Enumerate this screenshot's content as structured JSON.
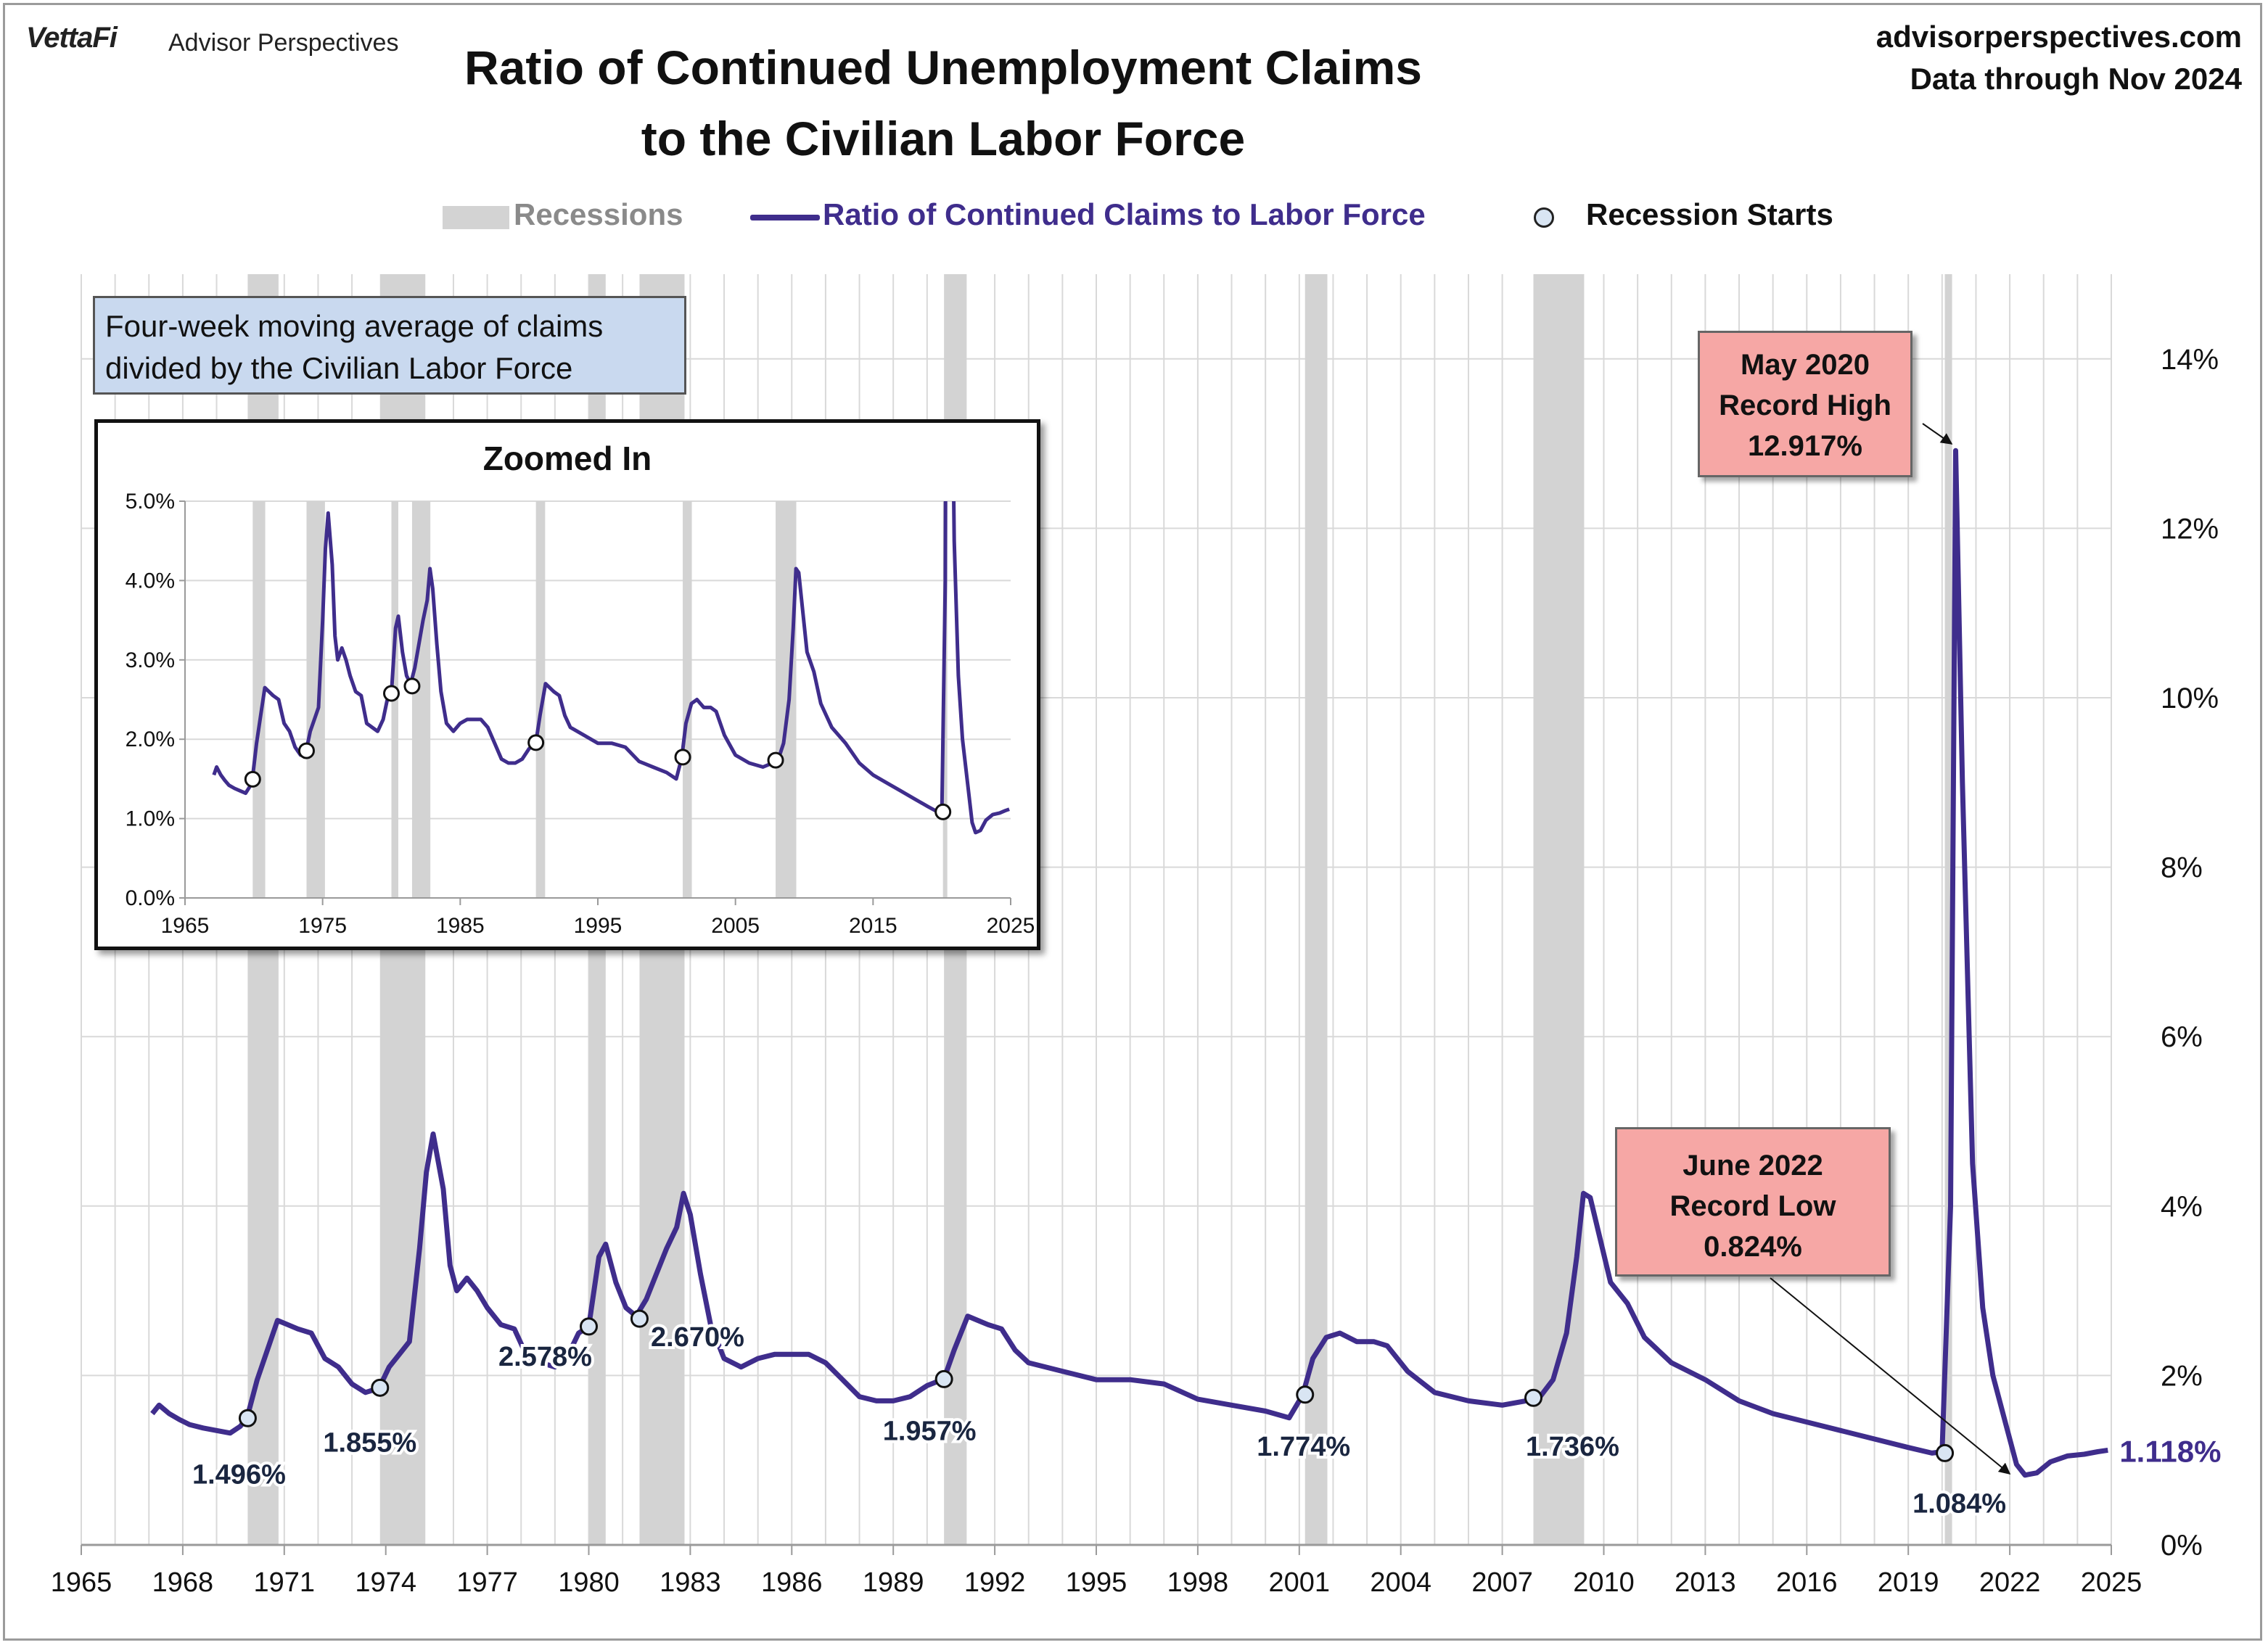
{
  "header": {
    "brand": "VettaFi",
    "brand_sub": "Advisor Perspectives",
    "title_line1": "Ratio of Continued Unemployment Claims",
    "title_line2": "to the Civilian Labor Force",
    "site": "advisorperspectives.com",
    "data_through": "Data through Nov 2024"
  },
  "legend": {
    "recessions": "Recessions",
    "series": "Ratio of Continued Claims to Labor Force",
    "starts": "Recession Starts"
  },
  "note": {
    "line1": "Four-week moving average of claims",
    "line2": "divided by the Civilian Labor Force"
  },
  "callouts": {
    "high": [
      "May 2020",
      "Record High",
      "12.917%"
    ],
    "low": [
      "June 2022",
      "Record Low",
      "0.824%"
    ]
  },
  "colors": {
    "line": "#3f2d8c",
    "recession": "#d3d3d3",
    "grid": "#d9d9d9",
    "marker_fill": "#d9e5f3",
    "callout_fill": "#f6a7a5",
    "note_fill": "#c9d9ef"
  },
  "chart_data": [
    {
      "type": "line",
      "title": "",
      "series": [
        {
          "name": "Ratio of Continued Claims to Labor Force",
          "x": [
            1967.1,
            1967.3,
            1967.6,
            1967.9,
            1968.2,
            1968.6,
            1969.0,
            1969.4,
            1969.7,
            1969.9,
            1970.2,
            1970.5,
            1970.8,
            1971.1,
            1971.4,
            1971.8,
            1972.2,
            1972.6,
            1973.0,
            1973.4,
            1973.8,
            1974.1,
            1974.4,
            1974.7,
            1975.0,
            1975.2,
            1975.4,
            1975.7,
            1975.9,
            1976.1,
            1976.4,
            1976.7,
            1977.0,
            1977.4,
            1977.8,
            1978.2,
            1978.6,
            1979.0,
            1979.4,
            1979.7,
            1980.0,
            1980.3,
            1980.5,
            1980.8,
            1981.1,
            1981.4,
            1981.7,
            1982.0,
            1982.3,
            1982.6,
            1982.8,
            1983.0,
            1983.3,
            1983.6,
            1984.0,
            1984.5,
            1985.0,
            1985.5,
            1986.0,
            1986.5,
            1987.0,
            1987.5,
            1988.0,
            1988.5,
            1989.0,
            1989.5,
            1990.0,
            1990.5,
            1990.8,
            1991.2,
            1991.5,
            1991.8,
            1992.2,
            1992.6,
            1993.0,
            1994.0,
            1995.0,
            1996.0,
            1997.0,
            1998.0,
            1999.0,
            2000.0,
            2000.7,
            2001.1,
            2001.4,
            2001.8,
            2002.2,
            2002.7,
            2003.2,
            2003.6,
            2004.2,
            2005.0,
            2006.0,
            2007.0,
            2007.7,
            2008.1,
            2008.5,
            2008.9,
            2009.2,
            2009.4,
            2009.6,
            2009.9,
            2010.2,
            2010.7,
            2011.2,
            2012.0,
            2013.0,
            2014.0,
            2015.0,
            2016.0,
            2017.0,
            2018.0,
            2019.0,
            2019.7,
            2020.0,
            2020.25,
            2020.4,
            2020.6,
            2020.9,
            2021.2,
            2021.5,
            2021.9,
            2022.2,
            2022.45,
            2022.8,
            2023.2,
            2023.7,
            2024.2,
            2024.6,
            2024.9
          ],
          "values": [
            1.55,
            1.65,
            1.55,
            1.48,
            1.42,
            1.38,
            1.35,
            1.32,
            1.4,
            1.5,
            1.95,
            2.3,
            2.65,
            2.6,
            2.55,
            2.5,
            2.2,
            2.1,
            1.9,
            1.8,
            1.85,
            2.1,
            2.25,
            2.4,
            3.5,
            4.4,
            4.85,
            4.2,
            3.3,
            3.0,
            3.15,
            3.0,
            2.8,
            2.6,
            2.55,
            2.2,
            2.15,
            2.1,
            2.25,
            2.5,
            2.58,
            3.4,
            3.55,
            3.1,
            2.8,
            2.7,
            2.9,
            3.2,
            3.5,
            3.75,
            4.15,
            3.9,
            3.2,
            2.6,
            2.2,
            2.1,
            2.2,
            2.25,
            2.25,
            2.25,
            2.15,
            1.95,
            1.75,
            1.7,
            1.7,
            1.75,
            1.88,
            1.96,
            2.3,
            2.7,
            2.65,
            2.6,
            2.55,
            2.3,
            2.15,
            2.05,
            1.95,
            1.95,
            1.9,
            1.72,
            1.65,
            1.58,
            1.5,
            1.77,
            2.2,
            2.45,
            2.5,
            2.4,
            2.4,
            2.35,
            2.05,
            1.8,
            1.7,
            1.65,
            1.7,
            1.74,
            1.95,
            2.5,
            3.4,
            4.15,
            4.1,
            3.6,
            3.1,
            2.85,
            2.45,
            2.15,
            1.95,
            1.7,
            1.55,
            1.45,
            1.35,
            1.25,
            1.15,
            1.084,
            1.1,
            4.0,
            12.917,
            9.0,
            4.5,
            2.8,
            2.0,
            1.4,
            0.95,
            0.824,
            0.85,
            0.98,
            1.05,
            1.07,
            1.1,
            1.118
          ]
        }
      ],
      "recessions": [
        [
          1969.92,
          1970.83
        ],
        [
          1973.83,
          1975.17
        ],
        [
          1980.0,
          1980.5
        ],
        [
          1981.5,
          1982.83
        ],
        [
          1990.5,
          1991.17
        ],
        [
          2001.17,
          2001.83
        ],
        [
          2007.92,
          2009.42
        ],
        [
          2020.08,
          2020.25
        ]
      ],
      "recession_starts": [
        {
          "x": 1969.92,
          "value": 1.496,
          "label": "1.496%"
        },
        {
          "x": 1973.83,
          "value": 1.855,
          "label": "1.855%"
        },
        {
          "x": 1980.0,
          "value": 2.578,
          "label": "2.578%"
        },
        {
          "x": 1981.5,
          "value": 2.67,
          "label": "2.670%"
        },
        {
          "x": 1990.5,
          "value": 1.957,
          "label": "1.957%"
        },
        {
          "x": 2001.17,
          "value": 1.774,
          "label": "1.774%"
        },
        {
          "x": 2007.92,
          "value": 1.736,
          "label": "1.736%"
        },
        {
          "x": 2020.08,
          "value": 1.084,
          "label": "1.084%"
        }
      ],
      "last_value_label": "1.118%",
      "xlim": [
        1965,
        2025
      ],
      "ylim": [
        0,
        15
      ],
      "x_ticks": [
        1965,
        1968,
        1971,
        1974,
        1977,
        1980,
        1983,
        1986,
        1989,
        1992,
        1995,
        1998,
        2001,
        2004,
        2007,
        2010,
        2013,
        2016,
        2019,
        2022,
        2025
      ],
      "y_ticks": [
        0,
        2,
        4,
        6,
        8,
        10,
        12,
        14
      ],
      "y_tick_labels": [
        "0%",
        "2%",
        "4%",
        "6%",
        "8%",
        "10%",
        "12%",
        "14%"
      ],
      "y_axis_side": "right",
      "grid": true
    },
    {
      "type": "line",
      "title": "Zoomed In",
      "xlim": [
        1965,
        2025
      ],
      "ylim": [
        0,
        5
      ],
      "x_ticks": [
        1965,
        1975,
        1985,
        1995,
        2005,
        2015,
        2025
      ],
      "y_ticks": [
        0,
        1,
        2,
        3,
        4,
        5
      ],
      "y_tick_labels": [
        "0.0%",
        "1.0%",
        "2.0%",
        "3.0%",
        "4.0%",
        "5.0%"
      ],
      "y_axis_side": "left",
      "grid": true,
      "clipped_above": 5
    }
  ]
}
